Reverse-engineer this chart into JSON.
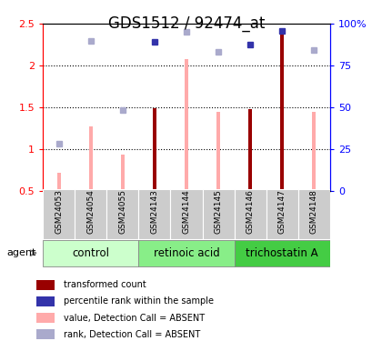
{
  "title": "GDS1512 / 92474_at",
  "categories": [
    "GSM24053",
    "GSM24054",
    "GSM24055",
    "GSM24143",
    "GSM24144",
    "GSM24145",
    "GSM24146",
    "GSM24147",
    "GSM24148"
  ],
  "groups": [
    {
      "name": "control",
      "indices": [
        0,
        1,
        2
      ],
      "color": "#ccffcc"
    },
    {
      "name": "retinoic acid",
      "indices": [
        3,
        4,
        5
      ],
      "color": "#88ee88"
    },
    {
      "name": "trichostatin A",
      "indices": [
        6,
        7,
        8
      ],
      "color": "#44dd44"
    }
  ],
  "dark_red_bars": {
    "indices": [
      3,
      6,
      7
    ],
    "values": [
      1.49,
      1.48,
      2.44
    ]
  },
  "pink_bars": {
    "indices": [
      0,
      1,
      2,
      4,
      5,
      8
    ],
    "values": [
      0.72,
      1.27,
      0.93,
      2.08,
      1.45,
      1.45
    ]
  },
  "light_blue_squares": {
    "indices": [
      0,
      1,
      2,
      4,
      5,
      8
    ],
    "values": [
      1.07,
      2.3,
      1.47,
      2.4,
      2.17,
      2.19
    ]
  },
  "dark_blue_squares": {
    "indices": [
      3,
      6,
      7
    ],
    "values": [
      2.28,
      2.25,
      2.42
    ]
  },
  "ylim": [
    0.5,
    2.5
  ],
  "y_ticks_left": [
    0.5,
    1.0,
    1.5,
    2.0,
    2.5
  ],
  "y_ticks_right_pct": [
    0,
    25,
    50,
    75,
    100
  ],
  "bar_width": 0.12,
  "dark_red_color": "#990000",
  "pink_color": "#ffaaaa",
  "dark_blue_color": "#3333aa",
  "light_blue_color": "#aaaacc",
  "title_fontsize": 12,
  "tick_fontsize": 8,
  "legend_items": [
    {
      "label": "transformed count",
      "color": "#990000"
    },
    {
      "label": "percentile rank within the sample",
      "color": "#3333aa"
    },
    {
      "label": "value, Detection Call = ABSENT",
      "color": "#ffaaaa"
    },
    {
      "label": "rank, Detection Call = ABSENT",
      "color": "#aaaacc"
    }
  ]
}
